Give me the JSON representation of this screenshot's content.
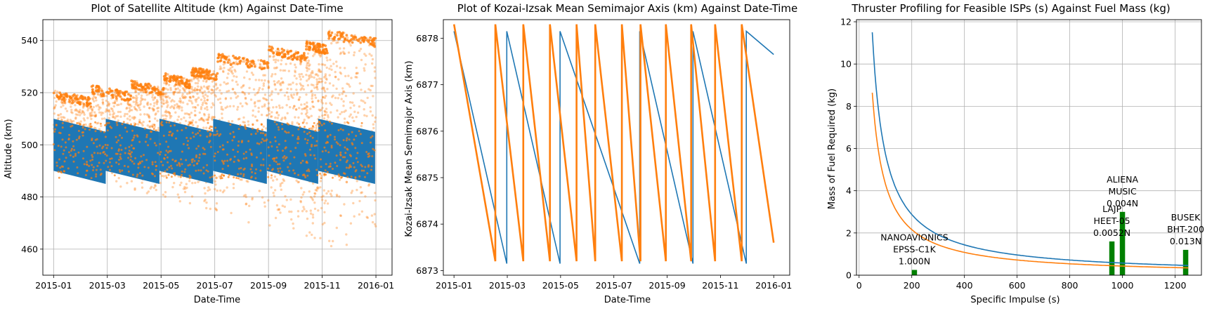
{
  "colors": {
    "blue": "#1f77b4",
    "orange": "#ff7f0e",
    "green": "#008000"
  },
  "chart_data": [
    {
      "type": "scatter",
      "title": "Plot of Satellite Altitude (km) Against Date-Time",
      "xlabel": "Date-Time",
      "ylabel": "Altitude (km)",
      "x_ticks": [
        "2015-01",
        "2015-03",
        "2015-05",
        "2015-07",
        "2015-09",
        "2015-11",
        "2016-01"
      ],
      "xlim": [
        -0.4,
        12.6
      ],
      "ylim": [
        450,
        548
      ],
      "y_ticks": [
        460,
        480,
        500,
        520,
        540
      ],
      "grid": true,
      "series": [
        {
          "color": "#1f77b4",
          "segments": [
            [
              0.0,
              1.94,
              510,
              505
            ],
            [
              1.94,
              3.94,
              510,
              505
            ],
            [
              3.94,
              5.94,
              510,
              505
            ],
            [
              5.94,
              7.94,
              510,
              505
            ],
            [
              7.94,
              9.85,
              510,
              505
            ],
            [
              9.85,
              11.97,
              510,
              505
            ]
          ],
          "band_low_start": 490,
          "band_low_end": 485
        },
        {
          "color": "#ff7f0e",
          "segments": [
            [
              0.0,
              1.4,
              521,
              518
            ],
            [
              1.4,
              2.9,
              523,
              520
            ],
            [
              2.9,
              4.1,
              525,
              522
            ],
            [
              4.1,
              5.1,
              528,
              525
            ],
            [
              5.1,
              6.1,
              530,
              528
            ],
            [
              6.1,
              8.0,
              535,
              532
            ],
            [
              8.0,
              9.4,
              538,
              535
            ],
            [
              9.4,
              10.2,
              540,
              538
            ],
            [
              10.2,
              12.0,
              544,
              541
            ]
          ],
          "envelope_low": [
            [
              0.0,
              491
            ],
            [
              12.0,
              455
            ]
          ]
        }
      ]
    },
    {
      "type": "line",
      "title": "Plot of Kozai-Izsak Mean Semimajor Axis (km) Against Date-Time",
      "xlabel": "Date-Time",
      "ylabel": "Kozai-Izsak Mean Semimajor Axis (km)",
      "x_ticks": [
        "2015-01",
        "2015-03",
        "2015-05",
        "2015-07",
        "2015-09",
        "2015-11",
        "2016-01"
      ],
      "xlim": [
        -0.4,
        12.6
      ],
      "ylim": [
        6872.9,
        6878.4
      ],
      "y_ticks": [
        6873,
        6874,
        6875,
        6876,
        6877,
        6878
      ],
      "grid": false,
      "series": [
        {
          "color": "#1f77b4",
          "resets": [
            0.0,
            1.98,
            3.98,
            6.97,
            8.97,
            10.97,
            12.0
          ],
          "high": 6878.15,
          "low": 6873.15
        },
        {
          "color": "#ff7f0e",
          "resets": [
            0.0,
            1.55,
            2.6,
            3.6,
            4.6,
            5.3,
            6.3,
            7.0,
            7.95,
            8.9,
            9.8,
            10.8,
            12.0
          ],
          "high": 6878.3,
          "low": 6873.2
        }
      ]
    },
    {
      "type": "line",
      "title": "Thruster Profiling for Feasible ISPs (s) Against Fuel Mass (kg)",
      "xlabel": "Specific Impulse (s)",
      "ylabel": "Mass of Fuel Required (kg)",
      "xlim": [
        -10,
        1300
      ],
      "ylim": [
        0,
        12.1
      ],
      "x_ticks": [
        0,
        200,
        400,
        600,
        800,
        1000,
        1200
      ],
      "y_ticks": [
        0,
        2,
        4,
        6,
        8,
        10,
        12
      ],
      "grid": true,
      "series": [
        {
          "color": "#1f77b4",
          "x_start": 50,
          "x_end": 1250,
          "k": 575
        },
        {
          "color": "#ff7f0e",
          "x_start": 50,
          "x_end": 1250,
          "k": 432
        }
      ],
      "bars": [
        {
          "x": 210,
          "value": 0.25,
          "label": [
            "NANOAVIONICS",
            "EPSS-C1K",
            "1.000N"
          ]
        },
        {
          "x": 960,
          "value": 1.6,
          "label": [
            "LAJP",
            "HEET-05",
            "0.0052N"
          ]
        },
        {
          "x": 1000,
          "value": 3.0,
          "label": [
            "ALIENA",
            "MUSIC",
            "0.004N"
          ]
        },
        {
          "x": 1240,
          "value": 1.2,
          "label": [
            "BUSEK",
            "BHT-200",
            "0.013N"
          ]
        }
      ]
    }
  ]
}
